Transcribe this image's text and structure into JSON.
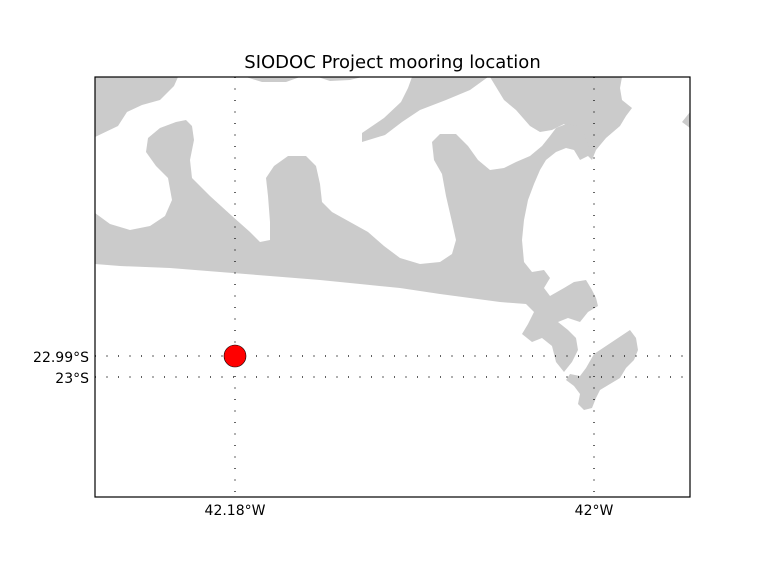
{
  "title": "SIODOC Project mooring location",
  "meridians": [
    {
      "label": "42.18°W",
      "lon": -42.18
    },
    {
      "label": "42°W",
      "lon": -42.0
    }
  ],
  "parallels": [
    {
      "label": "22.99°S",
      "lat": -22.99
    },
    {
      "label": "23°S",
      "lat": -23.0
    }
  ],
  "mooring": {
    "lon": -42.18,
    "lat": -22.99,
    "color": "#ff0000"
  },
  "colors": {
    "land": "#cbcbcb",
    "water": "#ffffff",
    "frame": "#000000"
  }
}
